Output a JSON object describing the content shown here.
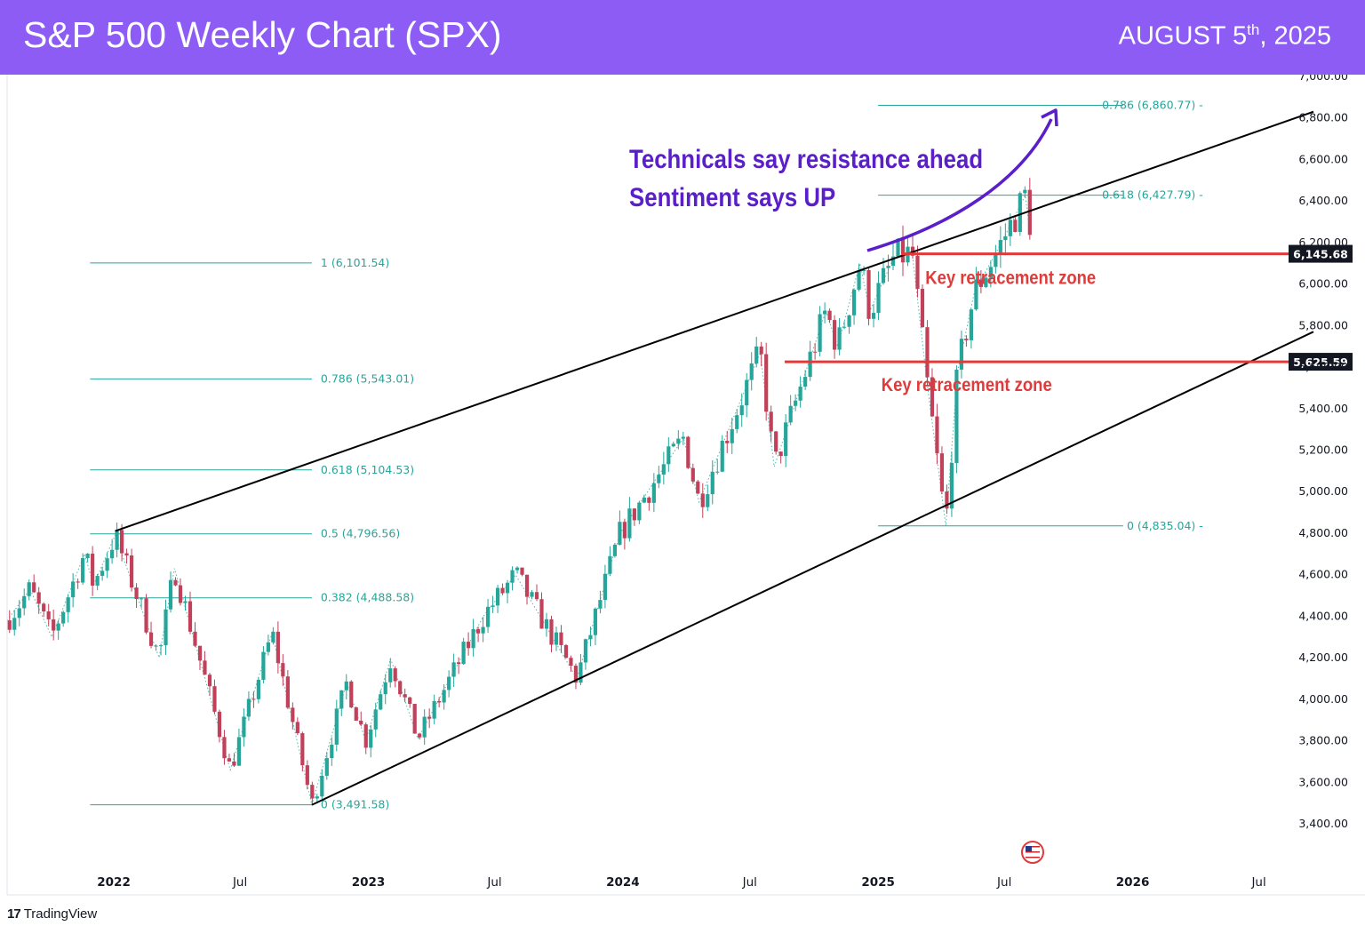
{
  "header": {
    "title": "S&P 500 Weekly Chart (SPX)",
    "date_main": "AUGUST 5",
    "date_sup": "th",
    "date_year": ", 2025",
    "bg_color": "#8c5cf4"
  },
  "footer": {
    "logo_mark": "17",
    "brand": "TradingView"
  },
  "chart_data": {
    "type": "candlestick",
    "y_axis": {
      "range": [
        3300,
        7000
      ],
      "ticks": [
        3400,
        3600,
        3800,
        4000,
        4200,
        4400,
        4600,
        4800,
        5000,
        5200,
        5400,
        5600,
        5800,
        6000,
        6200,
        6400,
        6600,
        6800,
        7000
      ],
      "tick_labels": [
        "3,400.00",
        "3,600.00",
        "3,800.00",
        "4,000.00",
        "4,200.00",
        "4,400.00",
        "4,600.00",
        "4,800.00",
        "5,000.00",
        "5,200.00",
        "5,400.00",
        "5,600.00",
        "5,800.00",
        "6,000.00",
        "6,200.00",
        "6,400.00",
        "6,600.00",
        "6,800.00",
        "7,000.00"
      ]
    },
    "x_axis": {
      "range": [
        "2021-08-01",
        "2026-08-10"
      ],
      "ticks": [
        {
          "date": "2022-01-01",
          "label": "2022",
          "bold": true
        },
        {
          "date": "2022-07-01",
          "label": "Jul",
          "bold": false
        },
        {
          "date": "2023-01-01",
          "label": "2023",
          "bold": true
        },
        {
          "date": "2023-07-01",
          "label": "Jul",
          "bold": false
        },
        {
          "date": "2024-01-01",
          "label": "2024",
          "bold": true
        },
        {
          "date": "2024-07-01",
          "label": "Jul",
          "bold": false
        },
        {
          "date": "2025-01-01",
          "label": "2025",
          "bold": true
        },
        {
          "date": "2025-07-01",
          "label": "Jul",
          "bold": false
        },
        {
          "date": "2026-01-01",
          "label": "2026",
          "bold": true
        },
        {
          "date": "2026-07-01",
          "label": "Jul",
          "bold": false
        }
      ]
    },
    "price_path": [
      {
        "date": "2021-08-01",
        "value": 4380
      },
      {
        "date": "2021-09-03",
        "value": 4530
      },
      {
        "date": "2021-10-04",
        "value": 4300
      },
      {
        "date": "2021-11-20",
        "value": 4700
      },
      {
        "date": "2021-12-03",
        "value": 4550
      },
      {
        "date": "2022-01-03",
        "value": 4790
      },
      {
        "date": "2022-03-07",
        "value": 4200
      },
      {
        "date": "2022-03-29",
        "value": 4630
      },
      {
        "date": "2022-06-17",
        "value": 3660
      },
      {
        "date": "2022-08-16",
        "value": 4320
      },
      {
        "date": "2022-10-12",
        "value": 3491
      },
      {
        "date": "2022-12-01",
        "value": 4080
      },
      {
        "date": "2022-12-28",
        "value": 3800
      },
      {
        "date": "2023-02-02",
        "value": 4195
      },
      {
        "date": "2023-03-13",
        "value": 3810
      },
      {
        "date": "2023-06-15",
        "value": 4400
      },
      {
        "date": "2023-07-31",
        "value": 4600
      },
      {
        "date": "2023-10-27",
        "value": 4100
      },
      {
        "date": "2023-12-28",
        "value": 4800
      },
      {
        "date": "2024-03-28",
        "value": 5260
      },
      {
        "date": "2024-04-19",
        "value": 4950
      },
      {
        "date": "2024-07-16",
        "value": 5670
      },
      {
        "date": "2024-08-05",
        "value": 5120
      },
      {
        "date": "2024-10-18",
        "value": 5870
      },
      {
        "date": "2024-11-04",
        "value": 5700
      },
      {
        "date": "2024-12-06",
        "value": 6100
      },
      {
        "date": "2024-12-20",
        "value": 5870
      },
      {
        "date": "2025-01-24",
        "value": 6130
      },
      {
        "date": "2025-02-19",
        "value": 6145
      },
      {
        "date": "2025-03-13",
        "value": 5500
      },
      {
        "date": "2025-04-08",
        "value": 4835
      },
      {
        "date": "2025-04-25",
        "value": 5580
      },
      {
        "date": "2025-05-19",
        "value": 5960
      },
      {
        "date": "2025-06-27",
        "value": 6200
      },
      {
        "date": "2025-07-31",
        "value": 6427
      },
      {
        "date": "2025-08-05",
        "value": 6300
      }
    ],
    "fib_retracement_1": {
      "start_date": "2021-11-28",
      "label_date": "2022-10-12",
      "levels": [
        {
          "ratio": "1",
          "value": 6101.54,
          "label": "1 (6,101.54)"
        },
        {
          "ratio": "0.786",
          "value": 5543.01,
          "label": "0.786 (5,543.01)"
        },
        {
          "ratio": "0.618",
          "value": 5104.53,
          "label": "0.618 (5,104.53)"
        },
        {
          "ratio": "0.5",
          "value": 4796.56,
          "label": "0.5 (4,796.56)"
        },
        {
          "ratio": "0.382",
          "value": 4488.58,
          "label": "0.382 (4,488.58)"
        },
        {
          "ratio": "0",
          "value": 3491.58,
          "label": "0 (3,491.58)"
        }
      ]
    },
    "fib_retracement_2": {
      "start_date": "2025-01-01",
      "end_date": "2025-12-31",
      "levels": [
        {
          "ratio": "0.786",
          "value": 6860.77,
          "label": "0.786 (6,860.77)"
        },
        {
          "ratio": "0.618",
          "value": 6427.79,
          "label": "0.618 (6,427.79)"
        },
        {
          "ratio": "0",
          "value": 4835.04,
          "label": "0 (4,835.04)"
        }
      ]
    },
    "channel": {
      "upper": {
        "from": {
          "date": "2022-01-03",
          "value": 4810
        },
        "to": {
          "date": "2026-08-10",
          "value": 6830
        }
      },
      "lower": {
        "from": {
          "date": "2022-10-12",
          "value": 3491
        },
        "to": {
          "date": "2026-08-10",
          "value": 5770
        }
      }
    },
    "horizontal_levels": [
      {
        "value": 6145.68,
        "label": "6,145.68",
        "from_date": "2025-02-03",
        "zone_label": "Key retracement zone",
        "zone_label_date": "2025-07-10",
        "zone_label_value": 6000
      },
      {
        "value": 5625.59,
        "label": "5,625.59",
        "from_date": "2024-08-20",
        "zone_label": "Key retracement zone",
        "zone_label_date": "2025-05-08",
        "zone_label_value": 5485
      }
    ],
    "annotation": {
      "line1": "Technicals say resistance ahead",
      "line2": "Sentiment says UP",
      "color": "#5a1fc9"
    },
    "colors": {
      "up": "#26a69a",
      "down": "#c2415a",
      "fib": "#26a69a",
      "channel": "#000000",
      "level": "#e03a3a",
      "zone_text": "#e03a3a",
      "arrow": "#5a1fc9"
    },
    "grid": false
  }
}
